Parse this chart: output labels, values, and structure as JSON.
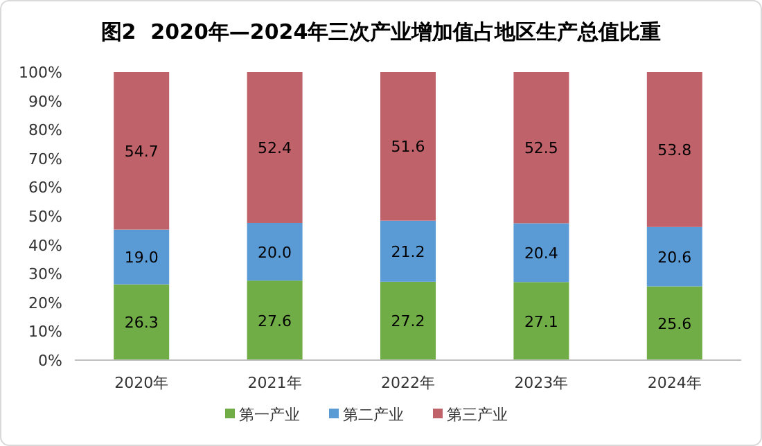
{
  "chart_data": {
    "type": "bar",
    "title": "图2  2020年—2024年三次产业增加值占地区生产总值比重",
    "stacked": true,
    "grid": false,
    "legend": "bottom",
    "categories": [
      "2020年",
      "2021年",
      "2022年",
      "2023年",
      "2024年"
    ],
    "ylim": [
      0,
      100
    ],
    "yticks": [
      {
        "value": 0,
        "label": "0%"
      },
      {
        "value": 10,
        "label": "10%"
      },
      {
        "value": 20,
        "label": "20%"
      },
      {
        "value": 30,
        "label": "30%"
      },
      {
        "value": 40,
        "label": "40%"
      },
      {
        "value": 50,
        "label": "50%"
      },
      {
        "value": 60,
        "label": "60%"
      },
      {
        "value": 70,
        "label": "70%"
      },
      {
        "value": 80,
        "label": "80%"
      },
      {
        "value": 90,
        "label": "90%"
      },
      {
        "value": 100,
        "label": "100%"
      }
    ],
    "series": [
      {
        "name": "第一产业",
        "color": "#70ad47",
        "values": [
          26.3,
          27.6,
          27.2,
          27.1,
          25.6
        ],
        "value_labels": [
          "26.3",
          "27.6",
          "27.2",
          "27.1",
          "25.6"
        ]
      },
      {
        "name": "第二产业",
        "color": "#5b9bd5",
        "values": [
          19.0,
          20.0,
          21.2,
          20.4,
          20.6
        ],
        "value_labels": [
          "19.0",
          "20.0",
          "21.2",
          "20.4",
          "20.6"
        ]
      },
      {
        "name": "第三产业",
        "color": "#c0626a",
        "values": [
          54.7,
          52.4,
          51.6,
          52.5,
          53.8
        ],
        "value_labels": [
          "54.7",
          "52.4",
          "51.6",
          "52.5",
          "53.8"
        ]
      }
    ]
  }
}
